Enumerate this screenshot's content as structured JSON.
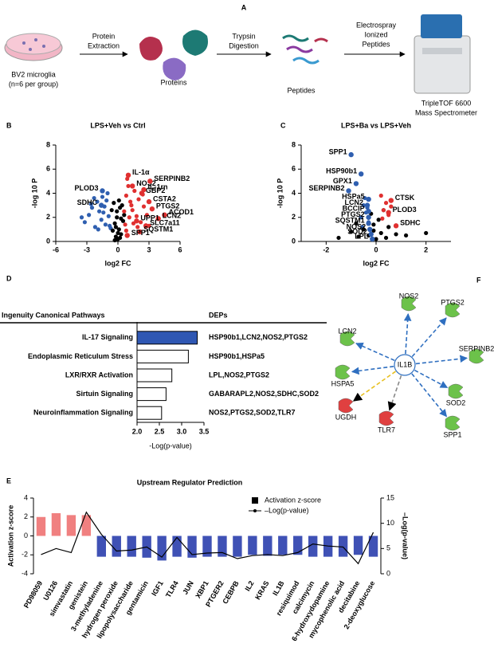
{
  "workflow": {
    "panel": "A",
    "steps": [
      [
        "BV2 microglia",
        "(n=6 per group)"
      ],
      [
        "Proteins"
      ],
      [
        "Peptides"
      ],
      [
        "TripleTOF 6600",
        "Mass Spectrometer"
      ]
    ],
    "arrows": [
      [
        "Protein",
        "Extraction"
      ],
      [
        "Trypsin",
        "Digestion"
      ],
      [
        "Electrospray",
        "Ionized",
        "Peptides"
      ]
    ]
  },
  "chart_data": [
    {
      "type": "scatter",
      "panel": "B",
      "title": "LPS+Veh vs Ctrl",
      "xlabel": "log2 FC",
      "ylabel": "-log 10 P",
      "xlim": [
        -6,
        6
      ],
      "xticks": [
        -6,
        -3,
        0,
        3,
        6
      ],
      "ylim": [
        0,
        8
      ],
      "yticks": [
        0,
        2,
        4,
        6,
        8
      ],
      "series": [
        {
          "color": "#2f5fb0",
          "x": [
            -3.2,
            -2.8,
            -2.5,
            -2.2,
            -2,
            -1.8,
            -1.6,
            -1.5,
            -1.3,
            -1.2,
            -1,
            -0.9,
            -0.8,
            -2.6,
            -1.9,
            -1.4,
            -1.1,
            -0.7,
            -3.5,
            -2.3
          ],
          "y": [
            1.6,
            2.2,
            2.8,
            1.2,
            3.3,
            2.5,
            1.8,
            3.7,
            2.9,
            1.4,
            4.0,
            2.1,
            1.3,
            3.1,
            1.0,
            2.4,
            3.4,
            1.1,
            2.0,
            3.6
          ]
        },
        {
          "color": "#000000",
          "x": [
            -0.6,
            -0.4,
            -0.3,
            -0.2,
            -0.1,
            0,
            0.1,
            0.2,
            0.3,
            0.4,
            0.5,
            -0.5,
            0.6,
            -0.2,
            0.1,
            0,
            -0.3,
            0.3,
            0.2,
            -0.1
          ],
          "y": [
            2.6,
            3.2,
            1.5,
            0.4,
            2.0,
            0.2,
            1.0,
            2.8,
            0.6,
            3.0,
            1.7,
            0.9,
            2.2,
            1.2,
            3.4,
            0.7,
            0.1,
            1.9,
            0.3,
            2.5
          ]
        },
        {
          "color": "#e03030",
          "x": [
            0.6,
            0.8,
            1.0,
            1.2,
            1.4,
            1.6,
            1.8,
            2.0,
            2.2,
            2.5,
            2.8,
            3.0,
            0.7,
            0.9,
            1.1,
            1.5,
            1.9,
            2.4,
            0.8,
            1.3
          ],
          "y": [
            2.5,
            3.8,
            4.6,
            3.3,
            2.6,
            4.2,
            2.1,
            3.5,
            1.6,
            2.9,
            2.2,
            1.3,
            1.4,
            5.2,
            2.0,
            1.5,
            1.2,
            3.9,
            0.9,
            3.0
          ]
        }
      ],
      "annotations": [
        {
          "text": "PLOD3",
          "x": -1.5,
          "y": 4.2
        },
        {
          "text": "SDHC",
          "x": -1.6,
          "y": 3.0
        },
        {
          "text": "IL-1α",
          "x": 1.0,
          "y": 5.5
        },
        {
          "text": "NOS2",
          "x": 1.4,
          "y": 4.6
        },
        {
          "text": "GBP2",
          "x": 2.3,
          "y": 4.0
        },
        {
          "text": "SERPINB2",
          "x": 3.1,
          "y": 5.0
        },
        {
          "text": "IL-1rn",
          "x": 2.5,
          "y": 4.3
        },
        {
          "text": "CSTA2",
          "x": 3.0,
          "y": 3.3
        },
        {
          "text": "PTGS2",
          "x": 3.3,
          "y": 2.7
        },
        {
          "text": "ACOD1",
          "x": 4.5,
          "y": 2.2
        },
        {
          "text": "LCN2",
          "x": 3.9,
          "y": 1.9
        },
        {
          "text": "SLC7a11",
          "x": 2.7,
          "y": 1.3
        },
        {
          "text": "SQSTM1",
          "x": 2.1,
          "y": 0.8
        },
        {
          "text": "UPP1",
          "x": 1.8,
          "y": 1.7
        },
        {
          "text": "SPP1",
          "x": 0.9,
          "y": 0.5
        }
      ]
    },
    {
      "type": "scatter",
      "panel": "C",
      "title": "LPS+Ba vs LPS+Veh",
      "xlabel": "log2 FC",
      "ylabel": "-log 10 P",
      "xlim": [
        -3,
        3
      ],
      "xticks": [
        -2,
        0,
        2
      ],
      "ylim": [
        0,
        8
      ],
      "yticks": [
        0,
        2,
        4,
        6,
        8
      ],
      "series": [
        {
          "color": "#2f5fb0",
          "x": [
            -0.5,
            -0.4,
            -0.6,
            -0.3,
            -0.45,
            -0.35,
            -0.55
          ],
          "y": [
            3.0,
            2.4,
            2.0,
            1.6,
            3.6,
            2.8,
            1.2
          ]
        },
        {
          "color": "#000000",
          "x": [
            -1.5,
            -1.0,
            -0.7,
            -0.5,
            -0.3,
            -0.2,
            -0.1,
            0,
            0.1,
            0.2,
            0.3,
            0.5,
            0.8,
            1.2,
            2.0,
            -0.8,
            0.4,
            -0.1
          ],
          "y": [
            0.3,
            0.8,
            0.4,
            1.0,
            0.5,
            2.3,
            1.4,
            0.2,
            1.8,
            0.7,
            2.6,
            1.2,
            0.6,
            0.5,
            0.7,
            1.5,
            0.3,
            0.9
          ]
        },
        {
          "color": "#e03030",
          "x": [
            0.2,
            0.3,
            0.4,
            0.5,
            0.6,
            0.25
          ],
          "y": [
            3.8,
            2.6,
            3.2,
            2.2,
            2.9,
            1.9
          ]
        }
      ],
      "annotations": [
        {
          "text": "SPP1",
          "x": -1.0,
          "y": 7.2
        },
        {
          "text": "HSP90b1",
          "x": -0.6,
          "y": 5.6
        },
        {
          "text": "GPX1",
          "x": -0.8,
          "y": 4.8
        },
        {
          "text": "SERPINB2",
          "x": -1.1,
          "y": 4.2
        },
        {
          "text": "HSPa5",
          "x": -0.3,
          "y": 3.5
        },
        {
          "text": "LCN2",
          "x": -0.35,
          "y": 3.0
        },
        {
          "text": "BCCIP",
          "x": -0.3,
          "y": 2.5
        },
        {
          "text": "PTGS2",
          "x": -0.3,
          "y": 2.0
        },
        {
          "text": "SQSTM1",
          "x": -0.3,
          "y": 1.5
        },
        {
          "text": "NOS2",
          "x": -0.25,
          "y": 1.0
        },
        {
          "text": "SOD2",
          "x": -0.2,
          "y": 0.6
        },
        {
          "text": "LPL",
          "x": -0.15,
          "y": 0.2
        },
        {
          "text": "CTSK",
          "x": 0.6,
          "y": 3.4
        },
        {
          "text": "PLOD3",
          "x": 0.5,
          "y": 2.4
        },
        {
          "text": "SDHC",
          "x": 0.8,
          "y": 1.3
        }
      ]
    },
    {
      "type": "bar",
      "panel": "D",
      "header": "Ingenuity Canonical Pathways",
      "deps_header": "DEPs",
      "xlabel": "-Log(p-value)",
      "categories": [
        "IL-17 Signaling",
        "Endoplasmic Reticulum Stress",
        "LXR/RXR Activation",
        "Sirtuin Signaling",
        "Neuroinflammation Signaling"
      ],
      "values": [
        3.35,
        3.15,
        2.78,
        2.65,
        2.55
      ],
      "colors": [
        "#2f57b3",
        "#ffffff",
        "#ffffff",
        "#ffffff",
        "#ffffff"
      ],
      "deps": [
        "HSP90b1,LCN2,NOS2,PTGS2",
        "HSP90b1,HSPa5",
        "LPL,NOS2,PTGS2",
        "GABARAPL2,NOS2,SDHC,SOD2",
        "NOS2,PTGS2,SOD2,TLR7"
      ],
      "xlim": [
        2.0,
        3.5
      ],
      "xticks": [
        {
          "value": 2.0,
          "label": "2.0"
        },
        {
          "value": 2.5,
          "label": "2.5"
        },
        {
          "value": 3.0,
          "label": "3.0"
        },
        {
          "value": 3.5,
          "label": "3.5"
        }
      ]
    },
    {
      "type": "bar_line",
      "panel": "E",
      "title": "Upstream Regulator Prediction",
      "ylabel": "Activation z-score",
      "y2label": "–Log(p-value)",
      "categories": [
        "PD98059",
        "U0126",
        "simvastatin",
        "genistein",
        "3-methyladenine",
        "hydrogen peroxide",
        "lipopolysaccharide",
        "gentamicin",
        "IGF1",
        "TLR4",
        "JUN",
        "XBP1",
        "PTGER2",
        "CEBPB",
        "IL2",
        "KRAS",
        "IL1B",
        "resiquimod",
        "calcimycin",
        "6-hydroxydopamine",
        "mycophenolic acid",
        "decitabine",
        "2-deoxyglucose"
      ],
      "ylim": [
        -4,
        4
      ],
      "yticks": [
        -4,
        -2,
        0,
        2,
        4
      ],
      "y2lim": [
        0,
        15
      ],
      "y2ticks": [
        0,
        5,
        10,
        15
      ],
      "series": [
        {
          "name": "Activation z-score",
          "color": "#000000",
          "colors": [
            "#f08080",
            "#f08080",
            "#f08080",
            "#f08080",
            "#3f51b5",
            "#3f51b5",
            "#3f51b5",
            "#3f51b5",
            "#3f51b5",
            "#3f51b5",
            "#3f51b5",
            "#3f51b5",
            "#3f51b5",
            "#3f51b5",
            "#3f51b5",
            "#3f51b5",
            "#3f51b5",
            "#3f51b5",
            "#3f51b5",
            "#3f51b5",
            "#3f51b5",
            "#3f51b5",
            "#3f51b5"
          ],
          "values": [
            2.0,
            2.4,
            2.2,
            2.2,
            -2.2,
            -2.2,
            -2.2,
            -2.3,
            -2.6,
            -2.2,
            -2.3,
            -2.2,
            -2.2,
            -2.2,
            -2.0,
            -2.1,
            -2.0,
            -2.0,
            -2.2,
            -2.2,
            -2.2,
            -2.0,
            -2.2
          ]
        },
        {
          "name": "–Log(p-value)",
          "color": "#000000",
          "axis": "y2",
          "values": [
            3.8,
            5.0,
            4.2,
            12.2,
            7.8,
            4.5,
            4.7,
            5.3,
            3.3,
            7.2,
            3.8,
            4.1,
            4.2,
            3.0,
            3.6,
            3.8,
            3.6,
            4.2,
            5.9,
            5.5,
            5.3,
            2.0,
            8.2
          ]
        }
      ]
    }
  ],
  "network": {
    "panel": "F",
    "center": "IL1B",
    "nodes": [
      {
        "label": "NOS2",
        "color": "#6cc24a",
        "edge": "#2f6fc0"
      },
      {
        "label": "PTGS2",
        "color": "#6cc24a",
        "edge": "#2f6fc0"
      },
      {
        "label": "SERPINB2",
        "color": "#6cc24a",
        "edge": "#2f6fc0"
      },
      {
        "label": "SOD2",
        "color": "#6cc24a",
        "edge": "#2f6fc0"
      },
      {
        "label": "SPP1",
        "color": "#6cc24a",
        "edge": "#2f6fc0"
      },
      {
        "label": "TLR7",
        "color": "#e04040",
        "edge": "#888888"
      },
      {
        "label": "UGDH",
        "color": "#e04040",
        "edge": "#e8c020"
      },
      {
        "label": "HSPA5",
        "color": "#6cc24a",
        "edge": "#2f6fc0"
      },
      {
        "label": "LCN2",
        "color": "#6cc24a",
        "edge": "#2f6fc0"
      }
    ]
  }
}
